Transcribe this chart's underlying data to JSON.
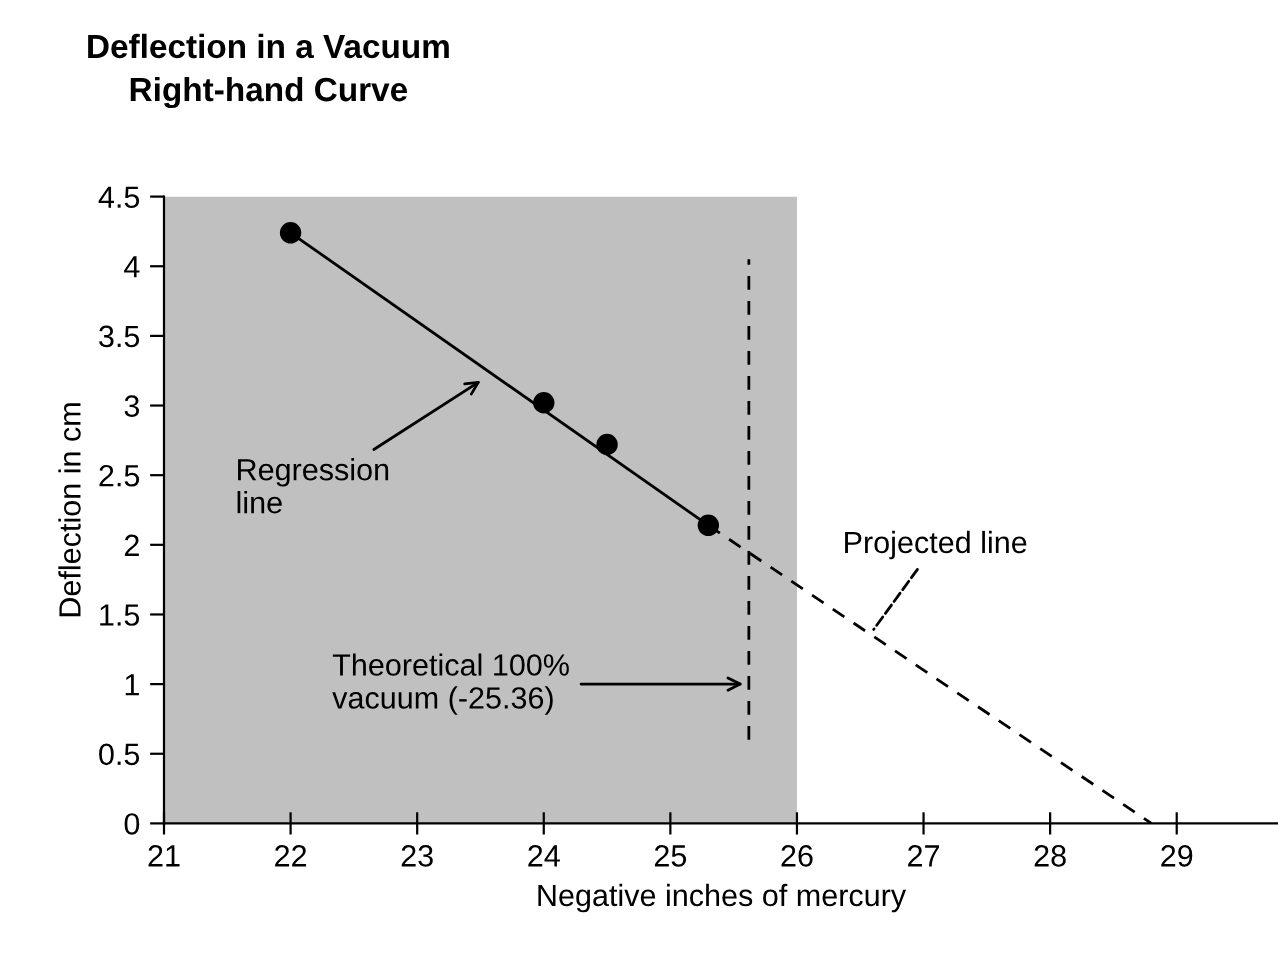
{
  "chart_data": {
    "type": "scatter",
    "title": "Deflection in a Vacuum\nRight-hand Curve",
    "xlabel": "Negative inches of mercury",
    "ylabel": "Deflection in cm",
    "series": [
      {
        "color": "#000000",
        "x": [
          22,
          24,
          24.5,
          25.3
        ],
        "values": [
          4.24,
          3.02,
          2.72,
          2.14
        ],
        "marker": "circle"
      },
      {
        "type": "line",
        "color": "#000000",
        "x": [
          22,
          25.3
        ],
        "values": [
          4.24,
          2.14
        ],
        "line_style": "solid"
      },
      {
        "type": "line",
        "color": "#000000",
        "x": [
          25.3,
          28.8
        ],
        "values": [
          2.14,
          0
        ],
        "line_style": "dashed"
      },
      {
        "type": "line",
        "color": "#000000",
        "x": [
          25.62,
          25.62
        ],
        "values": [
          0.6,
          4.05
        ],
        "line_style": "dashed"
      }
    ],
    "bands": [
      {
        "axis": "x",
        "from": 21,
        "to": 26,
        "color": "#c0c0c0"
      }
    ],
    "annotations": [
      {
        "text": "Regression\nline",
        "x": 23.54,
        "y": 3.2
      },
      {
        "text": "Theoretical 100%\nvacuum (-25.36)",
        "x": 25.62,
        "y": 1.0
      },
      {
        "text": "Projected line",
        "x": 26.58,
        "y": 1.36
      }
    ],
    "xlim": [
      21,
      29.8
    ],
    "xticks": [
      21,
      22,
      23,
      24,
      25,
      26,
      27,
      28,
      29
    ],
    "ylim": [
      0,
      4.5
    ],
    "yticks": [
      0,
      0.5,
      1,
      1.5,
      2,
      2.5,
      3,
      3.5,
      4,
      4.5
    ],
    "grid": false,
    "legend": false
  }
}
